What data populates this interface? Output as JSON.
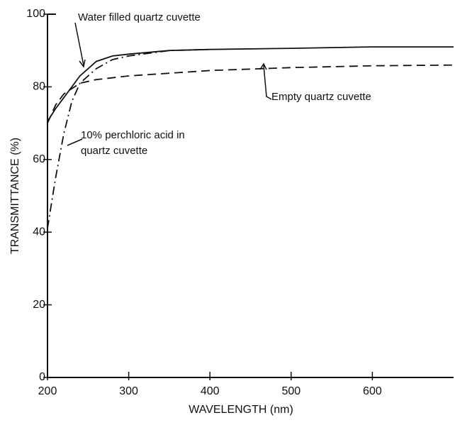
{
  "chart_data": {
    "type": "line",
    "x_label": "WAVELENGTH (nm)",
    "y_label": "TRANSMITTANCE (%)",
    "xlim": [
      200,
      700
    ],
    "ylim": [
      0,
      100
    ],
    "xticks": [
      200,
      300,
      400,
      500,
      600
    ],
    "yticks": [
      0,
      20,
      40,
      60,
      80,
      100
    ],
    "series": [
      {
        "name": "Water filled quartz cuvette",
        "color": "#111111",
        "dash": "solid",
        "x": [
          200,
          210,
          220,
          240,
          260,
          280,
          300,
          350,
          400,
          500,
          600,
          700
        ],
        "values": [
          70.5,
          74,
          77,
          83,
          87,
          88.5,
          89,
          90,
          90.3,
          90.6,
          91,
          91
        ]
      },
      {
        "name": "Empty quartz cuvette",
        "color": "#111111",
        "dash": "dashed",
        "x": [
          200,
          210,
          220,
          240,
          260,
          300,
          400,
          500,
          600,
          700
        ],
        "values": [
          70,
          75,
          78,
          81,
          82,
          83,
          84.5,
          85.3,
          85.8,
          86
        ]
      },
      {
        "name": "10% perchloric acid in quartz cuvette",
        "color": "#111111",
        "dash": "dashdot",
        "x": [
          200,
          205,
          210,
          220,
          230,
          240,
          260,
          280,
          300,
          350,
          400
        ],
        "values": [
          41,
          48,
          55,
          67,
          76,
          81,
          85,
          87.5,
          88.5,
          90,
          90.3
        ]
      }
    ]
  }
}
